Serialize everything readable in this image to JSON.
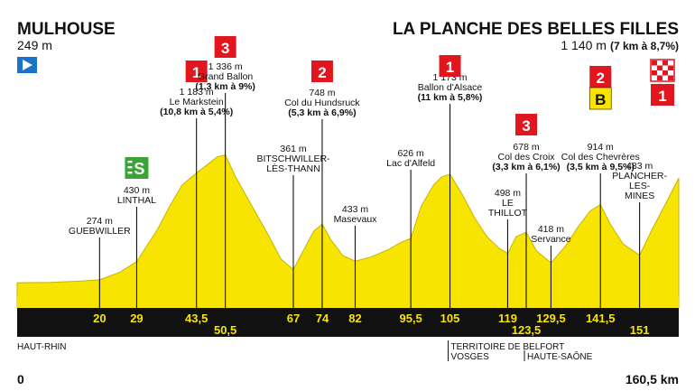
{
  "header": {
    "start_name": "MULHOUSE",
    "start_alt": "249 m",
    "finish_name": "LA PLANCHE DES BELLES FILLES",
    "finish_alt": "1 140 m",
    "finish_note": "(7 km à 8,7%)"
  },
  "colors": {
    "profile_fill": "#f7e400",
    "profile_stroke": "#c9b400",
    "axis_band": "#111111",
    "axis_text": "#f7e400",
    "climb_red": "#e1161f",
    "sprint_green": "#3aa537",
    "start_blue": "#1a73c8",
    "bonus_yellow": "#f7e400"
  },
  "footer": {
    "start_km": "0",
    "total_km": "160,5 km",
    "regions": [
      {
        "label": "HAUT-RHIN",
        "km": 0
      },
      {
        "label": "TERRITOIRE DE BELFORT",
        "km": 105
      },
      {
        "label": "VOSGES",
        "km": 105
      },
      {
        "label": "HAUTE-SAÔNE",
        "km": 123.5
      }
    ]
  },
  "chart_data": {
    "type": "area",
    "xlabel": "",
    "ylabel": "",
    "xlim": [
      0,
      160.5
    ],
    "ylim": [
      150,
      1500
    ],
    "profile": [
      [
        0,
        249
      ],
      [
        8,
        252
      ],
      [
        15,
        262
      ],
      [
        20,
        274
      ],
      [
        25,
        340
      ],
      [
        29,
        430
      ],
      [
        34,
        700
      ],
      [
        37,
        900
      ],
      [
        40,
        1080
      ],
      [
        43.5,
        1183
      ],
      [
        46,
        1250
      ],
      [
        48.5,
        1320
      ],
      [
        50.5,
        1336
      ],
      [
        53,
        1150
      ],
      [
        57,
        900
      ],
      [
        61,
        650
      ],
      [
        64,
        450
      ],
      [
        67,
        361
      ],
      [
        70,
        560
      ],
      [
        72,
        690
      ],
      [
        74,
        748
      ],
      [
        76,
        620
      ],
      [
        79,
        480
      ],
      [
        82,
        433
      ],
      [
        86,
        470
      ],
      [
        90,
        530
      ],
      [
        93,
        590
      ],
      [
        95.5,
        626
      ],
      [
        98,
        900
      ],
      [
        101,
        1080
      ],
      [
        103,
        1150
      ],
      [
        105,
        1173
      ],
      [
        108,
        1000
      ],
      [
        111,
        800
      ],
      [
        114,
        640
      ],
      [
        117,
        540
      ],
      [
        119,
        498
      ],
      [
        121,
        640
      ],
      [
        123.5,
        678
      ],
      [
        126,
        520
      ],
      [
        129.5,
        418
      ],
      [
        133,
        560
      ],
      [
        136,
        720
      ],
      [
        139,
        860
      ],
      [
        141.5,
        914
      ],
      [
        144,
        740
      ],
      [
        147,
        580
      ],
      [
        151,
        483
      ],
      [
        154,
        700
      ],
      [
        157,
        900
      ],
      [
        160.5,
        1140
      ]
    ],
    "km_ticks": [
      {
        "km": 20,
        "label": "20",
        "row": 1
      },
      {
        "km": 29,
        "label": "29",
        "row": 1
      },
      {
        "km": 43.5,
        "label": "43,5",
        "row": 1
      },
      {
        "km": 50.5,
        "label": "50,5",
        "row": 2
      },
      {
        "km": 67,
        "label": "67",
        "row": 1
      },
      {
        "km": 74,
        "label": "74",
        "row": 1
      },
      {
        "km": 82,
        "label": "82",
        "row": 1
      },
      {
        "km": 95.5,
        "label": "95,5",
        "row": 1
      },
      {
        "km": 105,
        "label": "105",
        "row": 1
      },
      {
        "km": 119,
        "label": "119",
        "row": 1
      },
      {
        "km": 123.5,
        "label": "123,5",
        "row": 2
      },
      {
        "km": 129.5,
        "label": "129,5",
        "row": 1
      },
      {
        "km": 141.5,
        "label": "141,5",
        "row": 1
      },
      {
        "km": 151,
        "label": "151",
        "row": 2
      }
    ],
    "points": [
      {
        "km": 20,
        "alt": 274,
        "alt_label": "274 m",
        "name": [
          "GUEBWILLER"
        ],
        "detail": "",
        "badge": ""
      },
      {
        "km": 29,
        "alt": 430,
        "alt_label": "430 m",
        "name": [
          "LINTHAL"
        ],
        "detail": "",
        "badge": "S"
      },
      {
        "km": 43.5,
        "alt": 1183,
        "alt_label": "1 183 m",
        "name": [
          "Le Markstein"
        ],
        "detail": "(10,8 km à 5,4%)",
        "badge": "1"
      },
      {
        "km": 50.5,
        "alt": 1336,
        "alt_label": "1 336 m",
        "name": [
          "Grand Ballon"
        ],
        "detail": "(1,3 km à 9%)",
        "badge": "3"
      },
      {
        "km": 67,
        "alt": 361,
        "alt_label": "361 m",
        "name": [
          "BITSCHWILLER-",
          "LÈS-THANN"
        ],
        "detail": "",
        "badge": ""
      },
      {
        "km": 74,
        "alt": 748,
        "alt_label": "748 m",
        "name": [
          "Col du Hundsruck"
        ],
        "detail": "(5,3 km à 6,9%)",
        "badge": "2"
      },
      {
        "km": 82,
        "alt": 433,
        "alt_label": "433 m",
        "name": [
          "Masevaux"
        ],
        "detail": "",
        "badge": ""
      },
      {
        "km": 95.5,
        "alt": 626,
        "alt_label": "626 m",
        "name": [
          "Lac d'Alfeld"
        ],
        "detail": "",
        "badge": ""
      },
      {
        "km": 105,
        "alt": 1173,
        "alt_label": "1 173 m",
        "name": [
          "Ballon d'Alsace"
        ],
        "detail": "(11 km à 5,8%)",
        "badge": "1"
      },
      {
        "km": 119,
        "alt": 498,
        "alt_label": "498 m",
        "name": [
          "LE",
          "THILLOT"
        ],
        "detail": "",
        "badge": ""
      },
      {
        "km": 123.5,
        "alt": 678,
        "alt_label": "678 m",
        "name": [
          "Col des Croix"
        ],
        "detail": "(3,3 km à 6,1%)",
        "badge": "3"
      },
      {
        "km": 129.5,
        "alt": 418,
        "alt_label": "418 m",
        "name": [
          "Servance"
        ],
        "detail": "",
        "badge": ""
      },
      {
        "km": 141.5,
        "alt": 914,
        "alt_label": "914 m",
        "name": [
          "Col des Chevrères"
        ],
        "detail": "(3,5 km à 9,5%)",
        "badge": "2",
        "bonus": "B"
      },
      {
        "km": 151,
        "alt": 483,
        "alt_label": "483 m",
        "name": [
          "PLANCHER-",
          "LES-",
          "MINES"
        ],
        "detail": "",
        "badge": ""
      }
    ],
    "finish_badge": "1"
  }
}
